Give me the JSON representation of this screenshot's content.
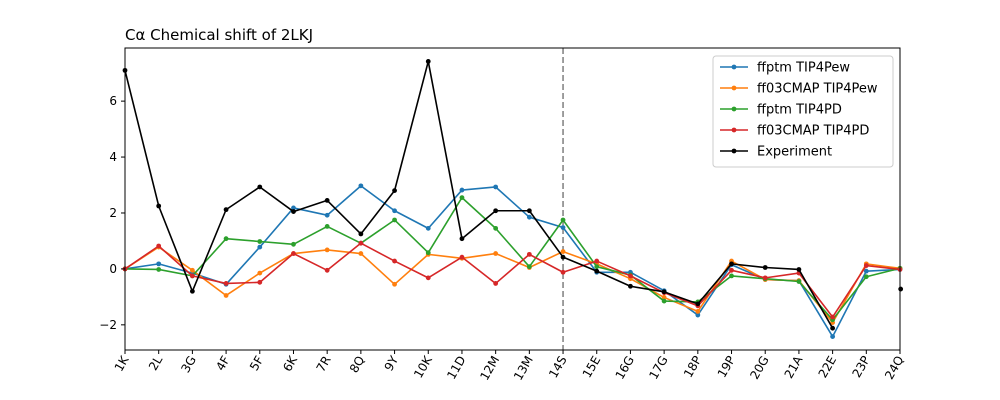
{
  "chart_data": {
    "type": "line",
    "title": "Cα Chemical shift of 2LKJ",
    "xlabel": "",
    "ylabel": "",
    "categories": [
      "1K",
      "2L",
      "3G",
      "4F",
      "5F",
      "6K",
      "7R",
      "8Q",
      "9Y",
      "10K",
      "11D",
      "12M",
      "13M",
      "14S",
      "15E",
      "16G",
      "17G",
      "18P",
      "19P",
      "20G",
      "21A",
      "22E",
      "23P",
      "24Q"
    ],
    "ylim": [
      -2.9,
      7.9
    ],
    "yticks": [
      -2,
      0,
      2,
      4,
      6
    ],
    "ytick_labels": [
      "−2",
      "0",
      "2",
      "4",
      "6"
    ],
    "divider_category": "14S",
    "legend_position": "top-right",
    "series": [
      {
        "name": "ffptm TIP4Pew",
        "color": "#1f77b4",
        "values": [
          0,
          0.18,
          -0.15,
          -0.55,
          0.78,
          2.18,
          1.92,
          2.97,
          2.08,
          1.45,
          2.82,
          2.93,
          1.85,
          1.48,
          -0.12,
          -0.12,
          -0.78,
          -1.65,
          0.15,
          -0.38,
          -0.42,
          -2.42,
          -0.08,
          -0.02
        ]
      },
      {
        "name": "ff03CMAP TIP4Pew",
        "color": "#ff7f0e",
        "values": [
          0,
          0.78,
          -0.05,
          -0.95,
          -0.15,
          0.55,
          0.68,
          0.55,
          -0.55,
          0.52,
          0.38,
          0.55,
          0.05,
          0.62,
          0.18,
          -0.35,
          -1.02,
          -1.52,
          0.28,
          -0.38,
          -0.42,
          -1.92,
          0.18,
          0.02
        ]
      },
      {
        "name": "ffptm TIP4PD",
        "color": "#2ca02c",
        "values": [
          0,
          -0.02,
          -0.25,
          1.08,
          0.98,
          0.88,
          1.52,
          0.92,
          1.75,
          0.58,
          2.55,
          1.45,
          0.08,
          1.75,
          0.08,
          -0.22,
          -1.15,
          -1.18,
          -0.25,
          -0.35,
          -0.45,
          -1.82,
          -0.28,
          0.02
        ]
      },
      {
        "name": "ff03CMAP TIP4PD",
        "color": "#d62728",
        "values": [
          0,
          0.82,
          -0.25,
          -0.52,
          -0.48,
          0.55,
          -0.05,
          0.92,
          0.28,
          -0.32,
          0.42,
          -0.52,
          0.52,
          -0.12,
          0.28,
          -0.25,
          -0.85,
          -1.32,
          -0.05,
          -0.32,
          -0.15,
          -1.72,
          0.12,
          -0.02
        ]
      },
      {
        "name": "Experiment",
        "color": "#000000",
        "values": [
          7.1,
          2.25,
          -0.8,
          2.12,
          2.93,
          2.05,
          2.45,
          1.25,
          2.8,
          7.42,
          1.08,
          2.08,
          2.08,
          0.42,
          -0.08,
          -0.62,
          -0.82,
          -1.25,
          0.18,
          0.05,
          -0.02,
          -2.12,
          null,
          null
        ],
        "extra_point": {
          "category_index": 23.02,
          "value": -0.72,
          "note": "lone point at right edge"
        }
      }
    ]
  }
}
